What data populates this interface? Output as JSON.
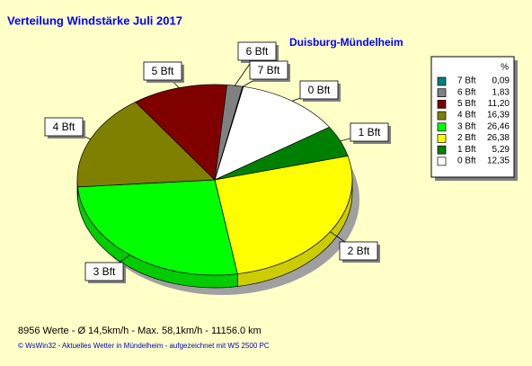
{
  "chart_data": {
    "type": "pie",
    "title": "Verteilung Windstärke  Juli 2017",
    "subtitle": "Duisburg-Mündelheim",
    "legend_header": "%",
    "categories": [
      "0 Bft",
      "1 Bft",
      "2 Bft",
      "3 Bft",
      "4 Bft",
      "5 Bft",
      "6 Bft",
      "7 Bft"
    ],
    "values": [
      12.35,
      5.29,
      26.38,
      26.46,
      16.39,
      11.2,
      1.83,
      0.09
    ],
    "value_labels": [
      "12,35",
      "5,29",
      "26,38",
      "26,46",
      "16,39",
      "11,20",
      "1,83",
      "0,09"
    ],
    "colors": [
      "#ffffff",
      "#008000",
      "#ffff00",
      "#00ff00",
      "#808000",
      "#800000",
      "#808080",
      "#008080"
    ],
    "footer": "8956 Werte   -   Ø 14,5km/h   -   Max. 58,1km/h   -   11156.0 km",
    "credit": "© WsWin32  -  Aktuelles Wetter in Mündelheim  -  aufgezeichnet mit WS 2500 PC"
  }
}
